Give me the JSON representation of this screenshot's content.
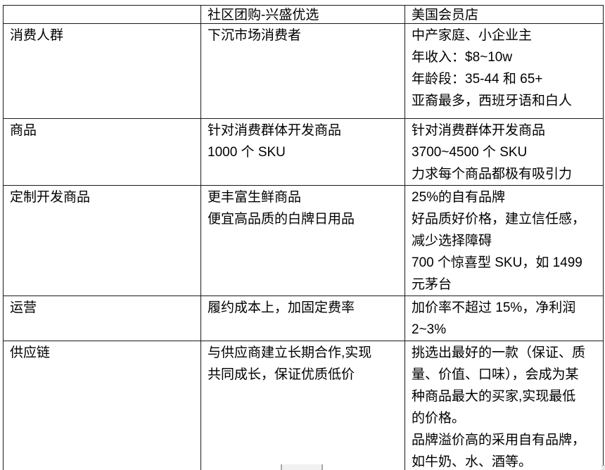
{
  "colors": {
    "table_border": "#1a1a1a",
    "text": "#000000",
    "scroll_thumb_bg": "#f1f1f1",
    "scroll_thumb_edge": "#a8a8a8"
  },
  "table": {
    "column_headers": [
      "",
      "社区团购-兴盛优选",
      "美国会员店"
    ],
    "rows": [
      {
        "label": "消费人群",
        "xingsheng": [
          "下沉市场消费者"
        ],
        "us_club": [
          "中产家庭、小企业主",
          "年收入：$8~10w",
          "年龄段：35-44 和 65+",
          "亚裔最多，西班牙语和白人"
        ]
      },
      {
        "label": "商品",
        "xingsheng": [
          "针对消费群体开发商品",
          "1000 个 SKU"
        ],
        "us_club": [
          "针对消费群体开发商品",
          "3700~4500 个 SKU",
          "力求每个商品都极有吸引力"
        ]
      },
      {
        "label": "定制开发商品",
        "xingsheng": [
          "更丰富生鲜商品",
          "便宜高品质的白牌日用品"
        ],
        "us_club": [
          "25%的自有品牌",
          "好品质好价格，建立信任感，",
          "减少选择障碍",
          "700 个惊喜型 SKU，如 1499",
          "元茅台"
        ]
      },
      {
        "label": "运营",
        "xingsheng": [
          "履约成本上，加固定费率"
        ],
        "us_club": [
          "加价率不超过 15%，净利润",
          "2~3%"
        ]
      },
      {
        "label": "供应链",
        "xingsheng": [
          "与供应商建立长期合作,实现",
          "共同成长，保证优质低价"
        ],
        "us_club": [
          "挑选出最好的一款（保证、质",
          "量、价值、口味），会成为某",
          "种商品最大的买家,实现最低",
          "的价格。",
          "品牌溢价高的采用自有品牌，",
          "如牛奶、水、酒等。"
        ]
      }
    ]
  }
}
